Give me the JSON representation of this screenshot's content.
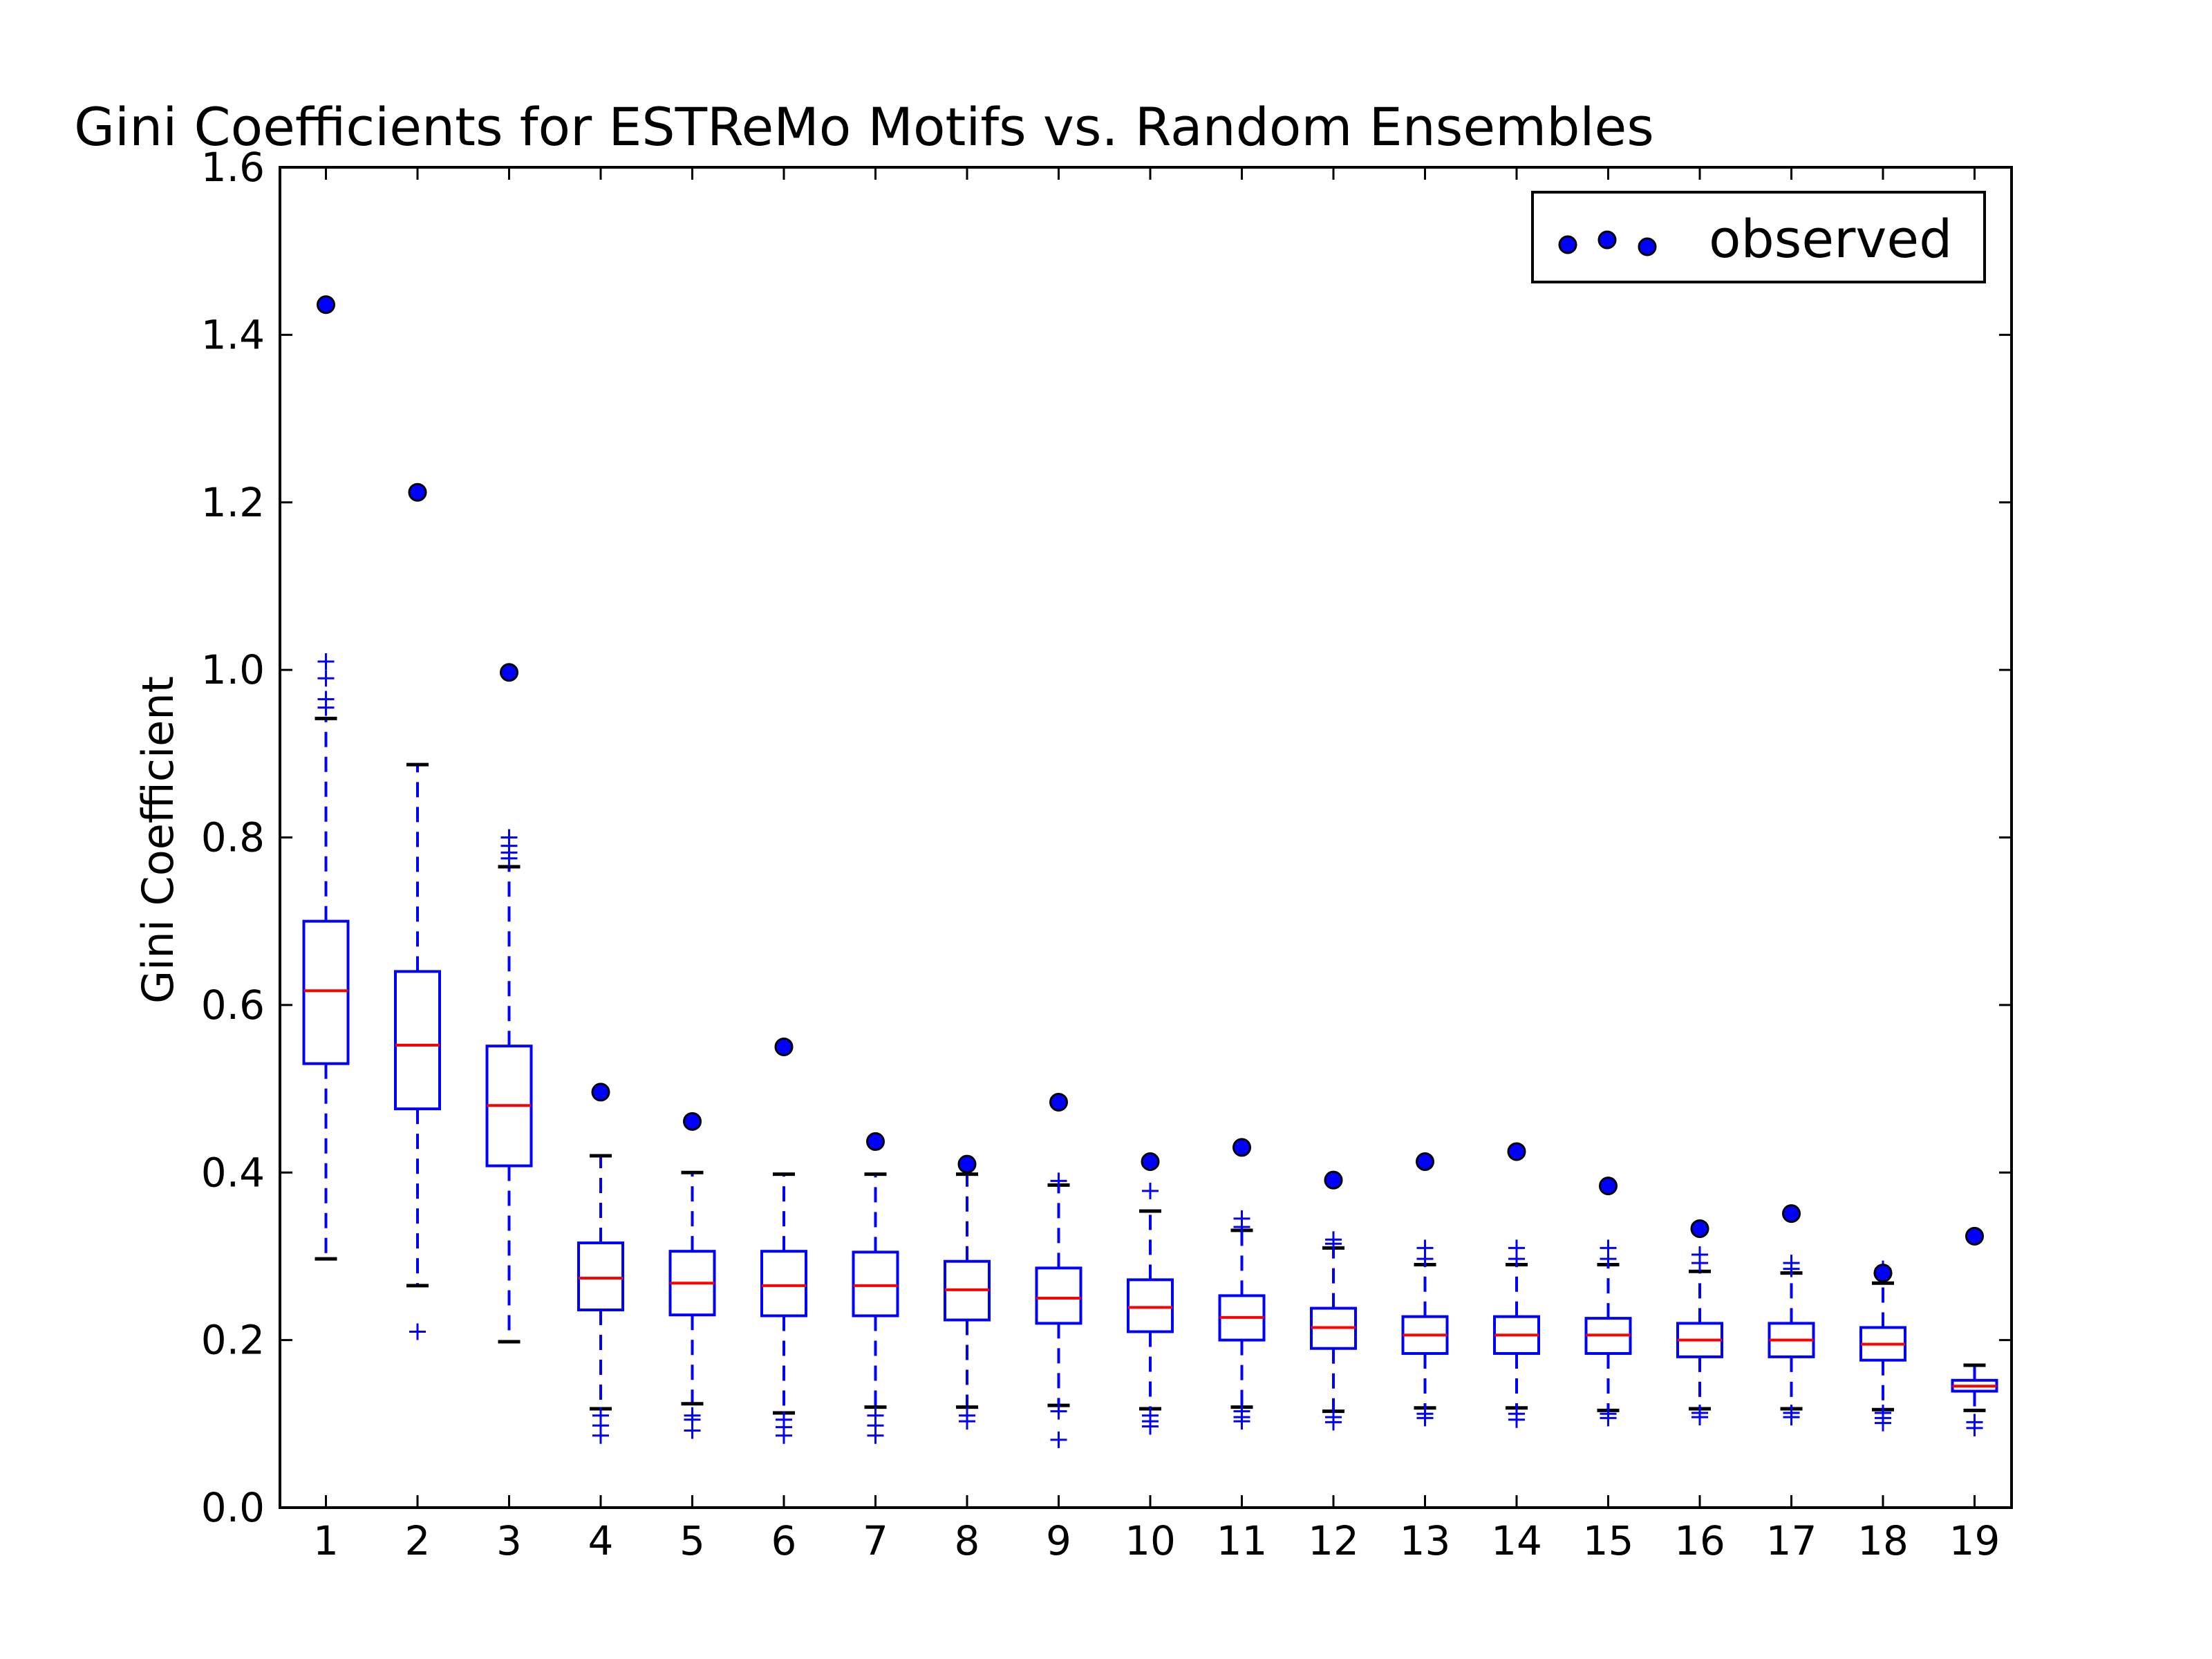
{
  "chart_data": {
    "type": "box",
    "title": "Gini Coefficients for ESTReMo Motifs vs. Random Ensembles",
    "xlabel": "",
    "ylabel": "Gini Coefficient",
    "ylim": [
      0.0,
      1.6
    ],
    "yticks": [
      "0.0",
      "0.2",
      "0.4",
      "0.6",
      "0.8",
      "1.0",
      "1.2",
      "1.4",
      "1.6"
    ],
    "categories": [
      "1",
      "2",
      "3",
      "4",
      "5",
      "6",
      "7",
      "8",
      "9",
      "10",
      "11",
      "12",
      "13",
      "14",
      "15",
      "16",
      "17",
      "18",
      "19"
    ],
    "grid": false,
    "legend": {
      "placement": "top-right",
      "entries": [
        "observed"
      ]
    },
    "colors": {
      "box": "#0000ff",
      "median": "#ff0000",
      "cap": "#000000",
      "observed": "#0000ff"
    },
    "boxes": [
      {
        "q1": 0.53,
        "median": 0.617,
        "q3": 0.7,
        "whislo": 0.297,
        "whishi": 0.942,
        "fliers": [
          0.955,
          0.965,
          0.99,
          1.01
        ]
      },
      {
        "q1": 0.476,
        "median": 0.552,
        "q3": 0.64,
        "whislo": 0.265,
        "whishi": 0.887,
        "fliers": [
          0.21
        ]
      },
      {
        "q1": 0.408,
        "median": 0.48,
        "q3": 0.551,
        "whislo": 0.198,
        "whishi": 0.765,
        "fliers": [
          0.775,
          0.782,
          0.79,
          0.8
        ]
      },
      {
        "q1": 0.236,
        "median": 0.274,
        "q3": 0.316,
        "whislo": 0.118,
        "whishi": 0.42,
        "fliers": [
          0.11,
          0.098,
          0.086
        ]
      },
      {
        "q1": 0.23,
        "median": 0.268,
        "q3": 0.306,
        "whislo": 0.124,
        "whishi": 0.4,
        "fliers": [
          0.11,
          0.105,
          0.092
        ]
      },
      {
        "q1": 0.229,
        "median": 0.265,
        "q3": 0.306,
        "whislo": 0.113,
        "whishi": 0.398,
        "fliers": [
          0.105,
          0.096,
          0.086
        ]
      },
      {
        "q1": 0.229,
        "median": 0.265,
        "q3": 0.305,
        "whislo": 0.12,
        "whishi": 0.398,
        "fliers": [
          0.11,
          0.098,
          0.086
        ]
      },
      {
        "q1": 0.224,
        "median": 0.26,
        "q3": 0.294,
        "whislo": 0.12,
        "whishi": 0.398,
        "fliers": [
          0.11,
          0.103
        ]
      },
      {
        "q1": 0.22,
        "median": 0.25,
        "q3": 0.286,
        "whislo": 0.122,
        "whishi": 0.385,
        "fliers": [
          0.39,
          0.115,
          0.081
        ]
      },
      {
        "q1": 0.21,
        "median": 0.239,
        "q3": 0.272,
        "whislo": 0.118,
        "whishi": 0.354,
        "fliers": [
          0.378,
          0.11,
          0.103,
          0.097
        ]
      },
      {
        "q1": 0.2,
        "median": 0.227,
        "q3": 0.253,
        "whislo": 0.12,
        "whishi": 0.331,
        "fliers": [
          0.345,
          0.335,
          0.115,
          0.108,
          0.103
        ]
      },
      {
        "q1": 0.19,
        "median": 0.215,
        "q3": 0.238,
        "whislo": 0.115,
        "whishi": 0.31,
        "fliers": [
          0.32,
          0.315,
          0.108,
          0.102
        ]
      },
      {
        "q1": 0.184,
        "median": 0.206,
        "q3": 0.228,
        "whislo": 0.119,
        "whishi": 0.29,
        "fliers": [
          0.31,
          0.297,
          0.112,
          0.107
        ]
      },
      {
        "q1": 0.184,
        "median": 0.206,
        "q3": 0.228,
        "whislo": 0.119,
        "whishi": 0.29,
        "fliers": [
          0.31,
          0.297,
          0.112,
          0.105
        ]
      },
      {
        "q1": 0.184,
        "median": 0.206,
        "q3": 0.226,
        "whislo": 0.116,
        "whishi": 0.29,
        "fliers": [
          0.31,
          0.297,
          0.112,
          0.107
        ]
      },
      {
        "q1": 0.18,
        "median": 0.2,
        "q3": 0.22,
        "whislo": 0.118,
        "whishi": 0.282,
        "fliers": [
          0.302,
          0.292,
          0.113,
          0.108
        ]
      },
      {
        "q1": 0.18,
        "median": 0.2,
        "q3": 0.22,
        "whislo": 0.118,
        "whishi": 0.28,
        "fliers": [
          0.292,
          0.285,
          0.113,
          0.108
        ]
      },
      {
        "q1": 0.176,
        "median": 0.195,
        "q3": 0.215,
        "whislo": 0.117,
        "whishi": 0.268,
        "fliers": [
          0.285,
          0.113,
          0.107,
          0.101
        ]
      },
      {
        "q1": 0.139,
        "median": 0.145,
        "q3": 0.152,
        "whislo": 0.116,
        "whishi": 0.17,
        "fliers": [
          0.102,
          0.095
        ]
      }
    ],
    "observed": [
      1.436,
      1.212,
      0.997,
      0.496,
      0.461,
      0.55,
      0.437,
      0.41,
      0.484,
      0.413,
      0.43,
      0.391,
      0.413,
      0.425,
      0.384,
      0.333,
      0.351,
      0.28,
      0.324
    ]
  }
}
